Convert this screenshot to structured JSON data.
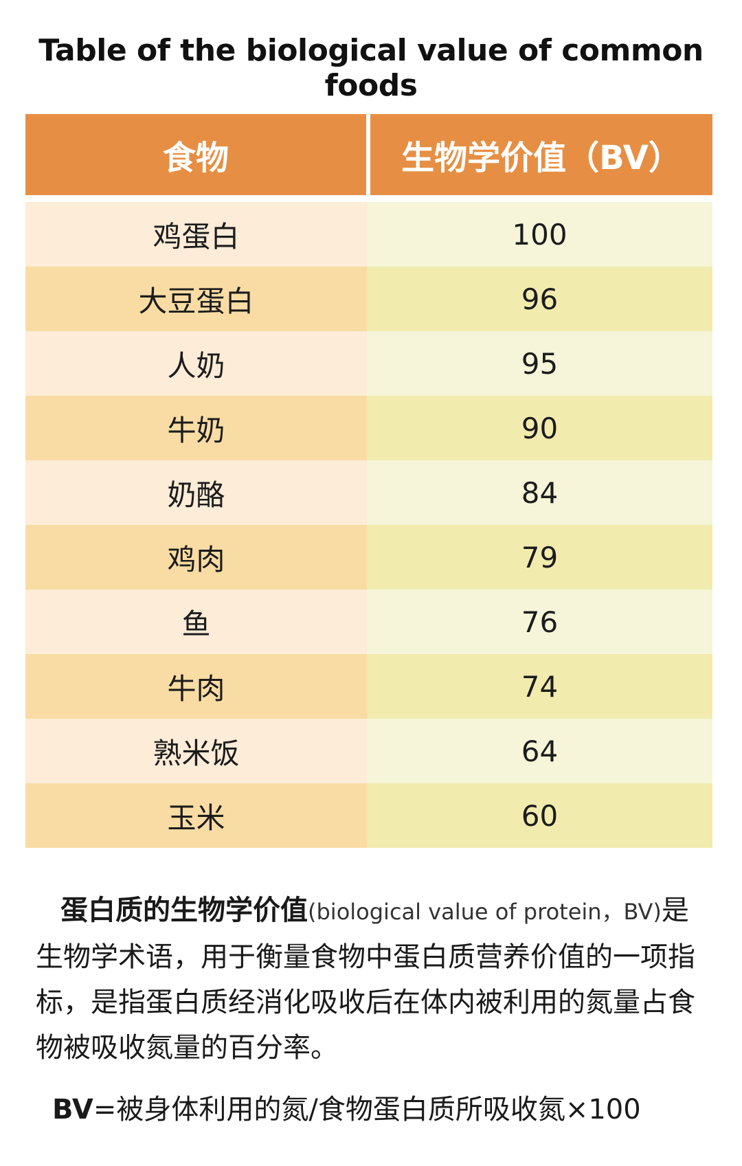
{
  "title": "Table of the biological value of common foods",
  "table": {
    "headers": {
      "food": "食物",
      "bv": "生物学价值（BV）"
    },
    "rows": [
      {
        "food": "鸡蛋白",
        "bv": "100"
      },
      {
        "food": "大豆蛋白",
        "bv": "96"
      },
      {
        "food": "人奶",
        "bv": "95"
      },
      {
        "food": "牛奶",
        "bv": "90"
      },
      {
        "food": "奶酪",
        "bv": "84"
      },
      {
        "food": "鸡肉",
        "bv": "79"
      },
      {
        "food": "鱼",
        "bv": "76"
      },
      {
        "food": "牛肉",
        "bv": "74"
      },
      {
        "food": "熟米饭",
        "bv": "64"
      },
      {
        "food": "玉米",
        "bv": "60"
      }
    ]
  },
  "description": {
    "term": "蛋白质的生物学价值",
    "term_en": "(biological value of protein，BV)",
    "body": "是生物学术语，用于衡量食物中蛋白质营养价值的一项指标，是指蛋白质经消化吸收后在体内被利用的氮量占食物被吸收氮量的百分率。"
  },
  "formula": {
    "label": "BV",
    "expression": "=被身体利用的氮/食物蛋白质所吸收氮×100"
  },
  "colors": {
    "header_bg": "#e68f44",
    "row_light_food": "#fcecd8",
    "row_light_bv": "#f6f5da",
    "row_dark_food": "#f9dca4",
    "row_dark_bv": "#f1ebae"
  }
}
